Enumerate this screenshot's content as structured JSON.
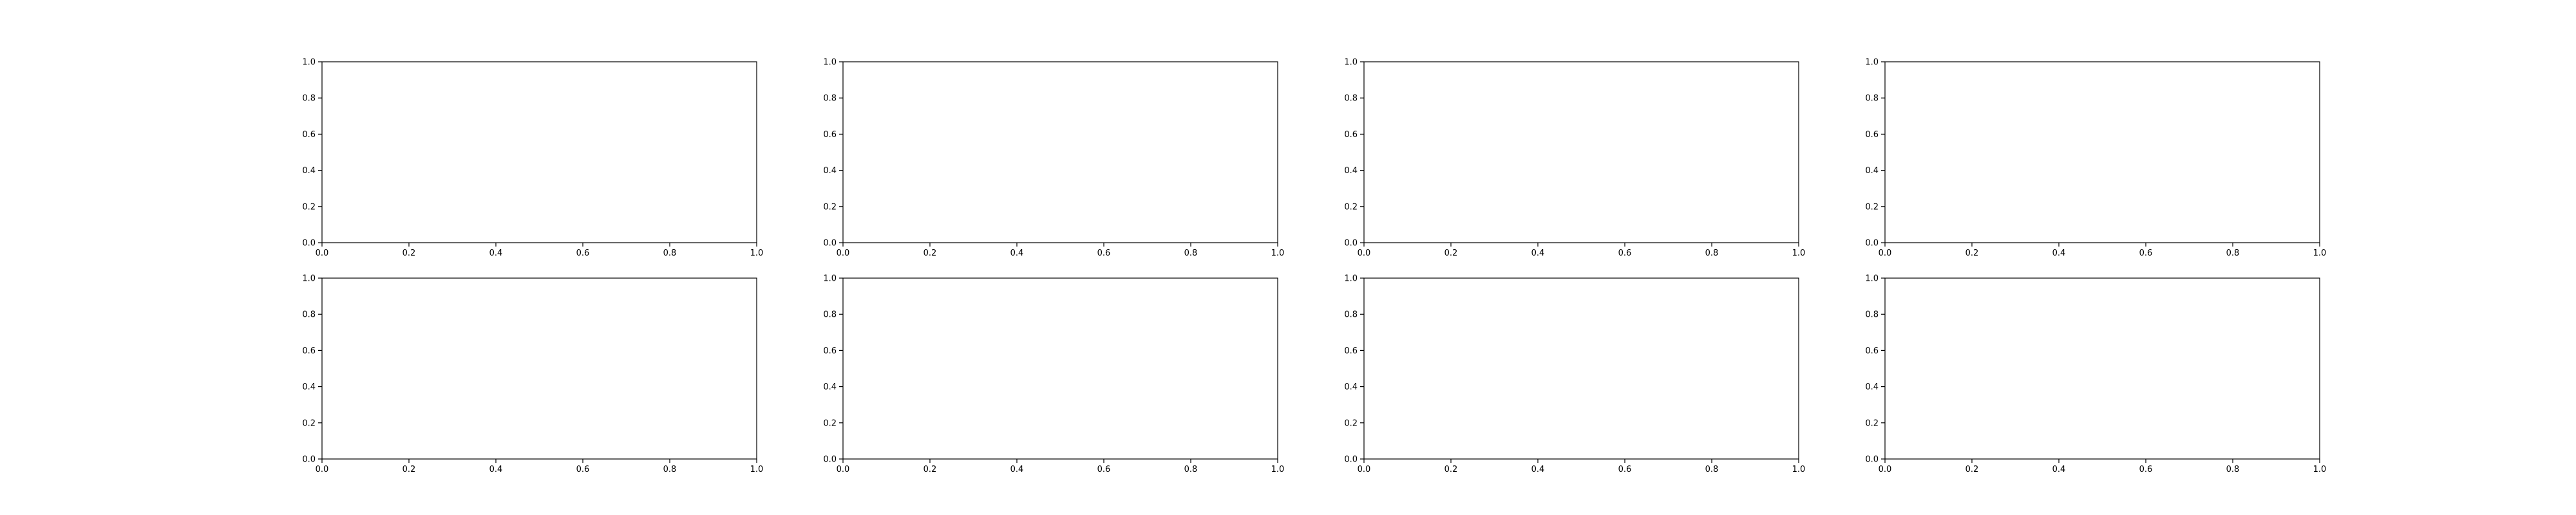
{
  "chart_data": [
    {
      "type": "line",
      "title": "",
      "xlabel": "",
      "ylabel": "",
      "xlim": [
        0,
        1
      ],
      "ylim": [
        0,
        1
      ],
      "xticks": [
        "0.0",
        "0.2",
        "0.4",
        "0.6",
        "0.8",
        "1.0"
      ],
      "yticks": [
        "0.0",
        "0.2",
        "0.4",
        "0.6",
        "0.8",
        "1.0"
      ],
      "series": [],
      "grid": false
    },
    {
      "type": "line",
      "title": "",
      "xlabel": "",
      "ylabel": "",
      "xlim": [
        0,
        1
      ],
      "ylim": [
        0,
        1
      ],
      "xticks": [
        "0.0",
        "0.2",
        "0.4",
        "0.6",
        "0.8",
        "1.0"
      ],
      "yticks": [
        "0.0",
        "0.2",
        "0.4",
        "0.6",
        "0.8",
        "1.0"
      ],
      "series": [],
      "grid": false
    },
    {
      "type": "line",
      "title": "",
      "xlabel": "",
      "ylabel": "",
      "xlim": [
        0,
        1
      ],
      "ylim": [
        0,
        1
      ],
      "xticks": [
        "0.0",
        "0.2",
        "0.4",
        "0.6",
        "0.8",
        "1.0"
      ],
      "yticks": [
        "0.0",
        "0.2",
        "0.4",
        "0.6",
        "0.8",
        "1.0"
      ],
      "series": [],
      "grid": false
    },
    {
      "type": "line",
      "title": "",
      "xlabel": "",
      "ylabel": "",
      "xlim": [
        0,
        1
      ],
      "ylim": [
        0,
        1
      ],
      "xticks": [
        "0.0",
        "0.2",
        "0.4",
        "0.6",
        "0.8",
        "1.0"
      ],
      "yticks": [
        "0.0",
        "0.2",
        "0.4",
        "0.6",
        "0.8",
        "1.0"
      ],
      "series": [],
      "grid": false
    },
    {
      "type": "line",
      "title": "",
      "xlabel": "",
      "ylabel": "",
      "xlim": [
        0,
        1
      ],
      "ylim": [
        0,
        1
      ],
      "xticks": [
        "0.0",
        "0.2",
        "0.4",
        "0.6",
        "0.8",
        "1.0"
      ],
      "yticks": [
        "0.0",
        "0.2",
        "0.4",
        "0.6",
        "0.8",
        "1.0"
      ],
      "series": [],
      "grid": false
    },
    {
      "type": "line",
      "title": "",
      "xlabel": "",
      "ylabel": "",
      "xlim": [
        0,
        1
      ],
      "ylim": [
        0,
        1
      ],
      "xticks": [
        "0.0",
        "0.2",
        "0.4",
        "0.6",
        "0.8",
        "1.0"
      ],
      "yticks": [
        "0.0",
        "0.2",
        "0.4",
        "0.6",
        "0.8",
        "1.0"
      ],
      "series": [],
      "grid": false
    },
    {
      "type": "line",
      "title": "",
      "xlabel": "",
      "ylabel": "",
      "xlim": [
        0,
        1
      ],
      "ylim": [
        0,
        1
      ],
      "xticks": [
        "0.0",
        "0.2",
        "0.4",
        "0.6",
        "0.8",
        "1.0"
      ],
      "yticks": [
        "0.0",
        "0.2",
        "0.4",
        "0.6",
        "0.8",
        "1.0"
      ],
      "series": [],
      "grid": false
    },
    {
      "type": "line",
      "title": "",
      "xlabel": "",
      "ylabel": "",
      "xlim": [
        0,
        1
      ],
      "ylim": [
        0,
        1
      ],
      "xticks": [
        "0.0",
        "0.2",
        "0.4",
        "0.6",
        "0.8",
        "1.0"
      ],
      "yticks": [
        "0.0",
        "0.2",
        "0.4",
        "0.6",
        "0.8",
        "1.0"
      ],
      "series": [],
      "grid": false
    }
  ]
}
